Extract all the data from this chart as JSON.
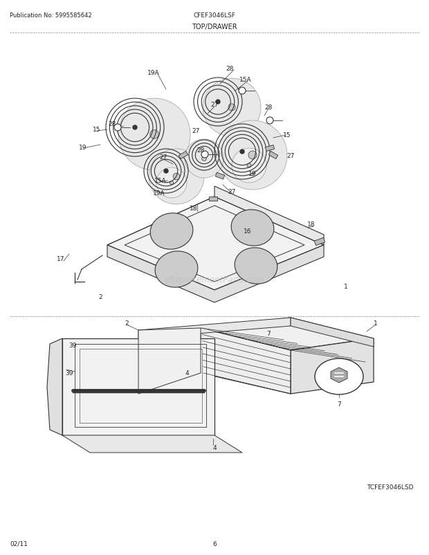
{
  "page_title_left": "Publication No: 5995585642",
  "page_title_center": "CFEF3046LSF",
  "section_title": "TOP/DRAWER",
  "footer_left": "02/11",
  "footer_center": "6",
  "footer_right": "TCFEF3046LSD",
  "bg_color": "#ffffff",
  "line_color": "#333333",
  "text_color": "#222222",
  "watermark": "eReplacementParts.com"
}
